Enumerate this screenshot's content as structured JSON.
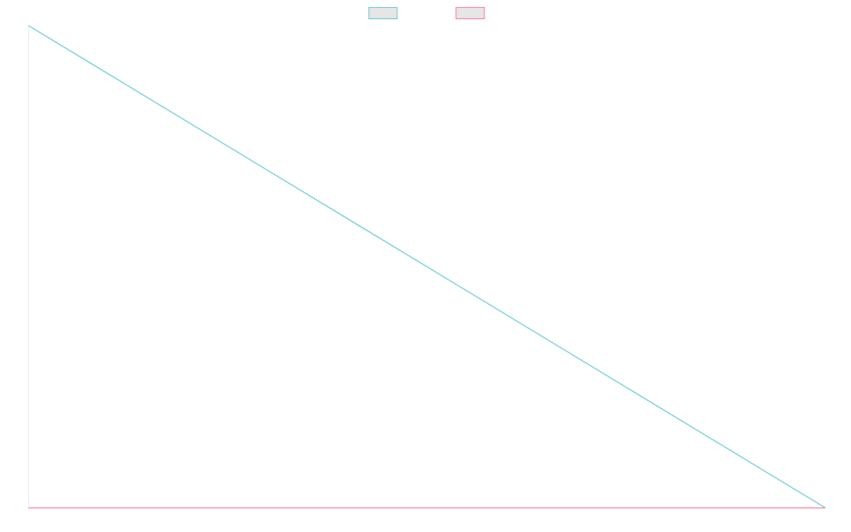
{
  "chart_data": {
    "type": "line",
    "x": [
      0,
      1
    ],
    "series": [
      {
        "values": [
          1,
          0
        ],
        "color": "#4bc0c8"
      },
      {
        "values": [
          0,
          0
        ],
        "color": "#ff6384"
      }
    ],
    "ylim": [
      0,
      1
    ],
    "grid": false,
    "legend_position": "top-center"
  }
}
